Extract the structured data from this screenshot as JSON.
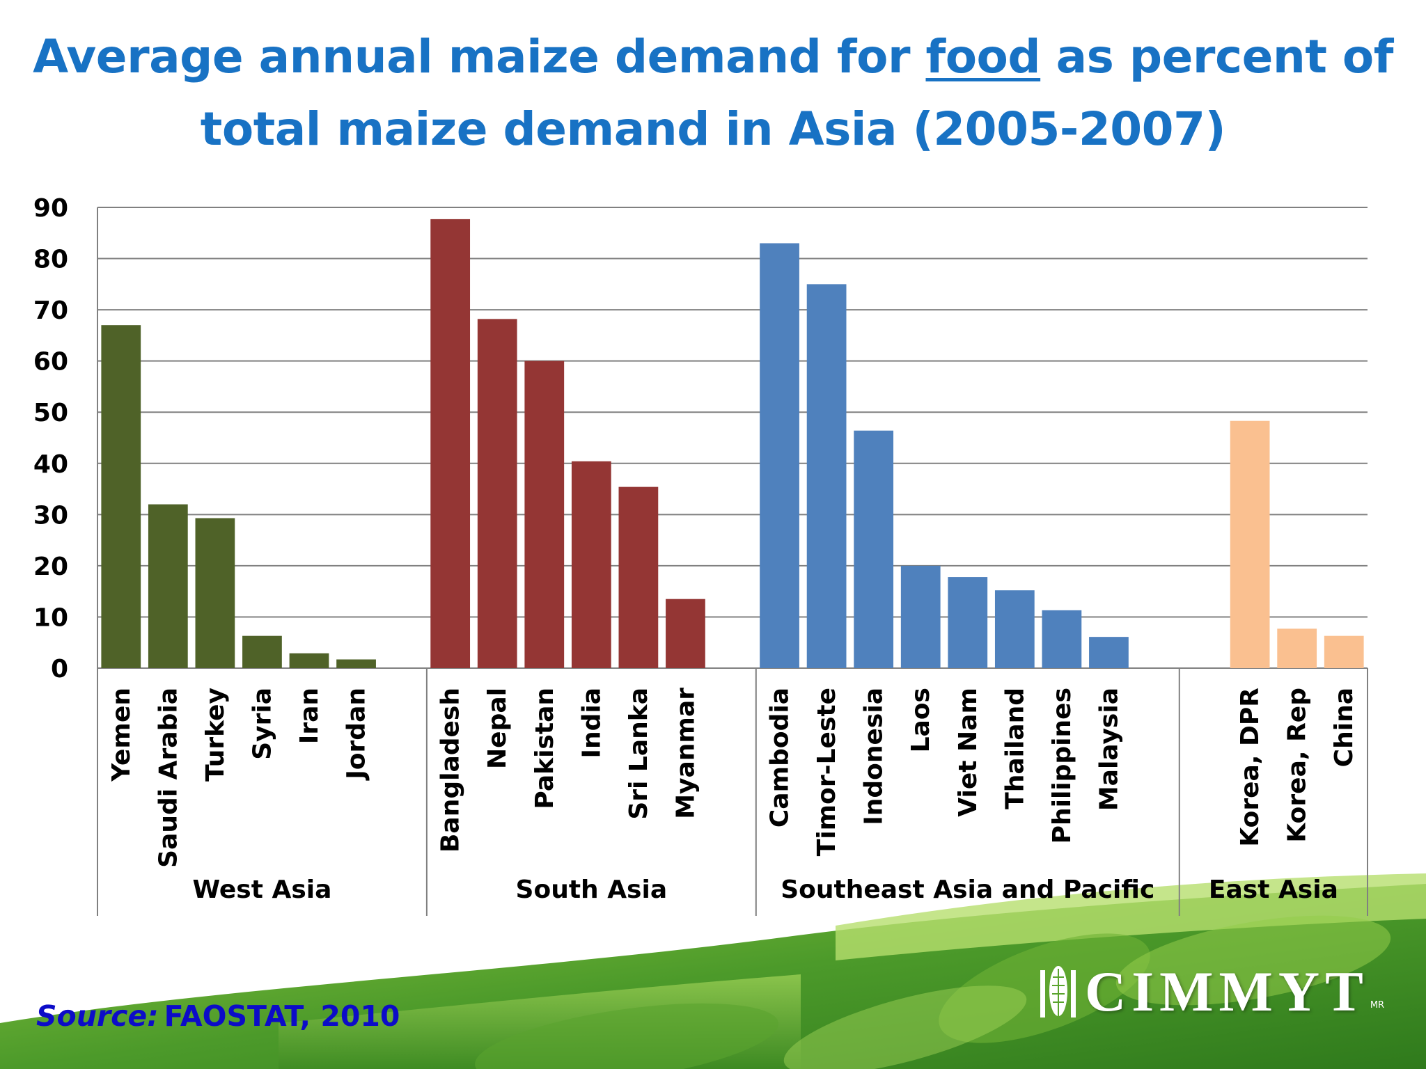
{
  "title": {
    "part1": "Average annual maize demand for ",
    "emphasis": "food",
    "part2": " as percent of total maize demand in Asia (2005-2007)"
  },
  "source": {
    "label": "Source:",
    "text": "FAOSTAT, 2010"
  },
  "logo": {
    "text": "CIMMYT",
    "mark": "MR"
  },
  "colors": {
    "title": "#1872c4",
    "source": "#0c0cc8",
    "west_asia": "#4f6228",
    "south_asia": "#943634",
    "southeast_asia": "#4f81bd",
    "east_asia": "#fac090",
    "grid": "#7f7f7f",
    "background_leaf": "#5a9e2a"
  },
  "chart_data": {
    "type": "bar",
    "title": "Average annual maize demand for food as percent of total maize demand in Asia (2005-2007)",
    "ylim": [
      0,
      90
    ],
    "yticks": [
      0,
      10,
      20,
      30,
      40,
      50,
      60,
      70,
      80,
      90
    ],
    "grid": true,
    "groups": [
      {
        "name": "West Asia",
        "color": "#4f6228",
        "categories": [
          "Yemen",
          "Saudi Arabia",
          "Turkey",
          "Syria",
          "Iran",
          "Jordan"
        ],
        "values": [
          67,
          32,
          29.3,
          6.3,
          2.9,
          1.7
        ]
      },
      {
        "name": "South Asia",
        "color": "#943634",
        "categories": [
          "Bangladesh",
          "Nepal",
          "Pakistan",
          "India",
          "Sri Lanka",
          "Myanmar"
        ],
        "values": [
          87.7,
          68.2,
          60,
          40.4,
          35.4,
          13.5
        ]
      },
      {
        "name": "Southeast Asia and Pacific",
        "color": "#4f81bd",
        "categories": [
          "Cambodia",
          "Timor-Leste",
          "Indonesia",
          "Laos",
          "Viet Nam",
          "Thailand",
          "Philippines",
          "Malaysia"
        ],
        "values": [
          83,
          75,
          46.4,
          20,
          17.8,
          15.2,
          11.3,
          6.1
        ]
      },
      {
        "name": "East Asia",
        "color": "#fac090",
        "categories": [
          "Korea, DPR",
          "Korea, Rep",
          "China"
        ],
        "values": [
          48.3,
          7.7,
          6.3
        ]
      }
    ]
  }
}
